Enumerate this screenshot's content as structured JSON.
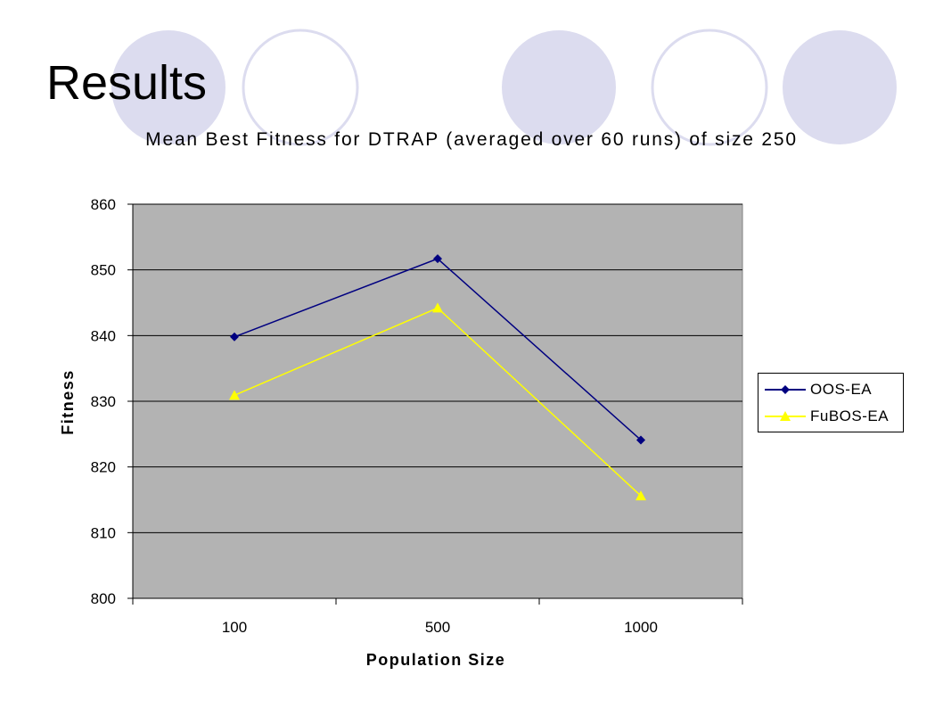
{
  "slide": {
    "title": "Results",
    "decor_color": "#dcdcef"
  },
  "chart_data": {
    "type": "line",
    "title": "Mean Best Fitness for DTRAP (averaged over 60 runs) of size 250",
    "xlabel": "Population Size",
    "ylabel": "Fitness",
    "categories": [
      "100",
      "500",
      "1000"
    ],
    "ylim": [
      800,
      860
    ],
    "yticks": [
      800,
      810,
      820,
      830,
      840,
      850,
      860
    ],
    "grid": true,
    "plot_background": "#b3b3b3",
    "legend_position": "right",
    "series": [
      {
        "name": "OOS-EA",
        "values": [
          839.8,
          851.7,
          824.1
        ],
        "color": "#000080",
        "marker": "diamond"
      },
      {
        "name": "FuBOS-EA",
        "values": [
          830.9,
          844.2,
          815.6
        ],
        "color": "#ffff00",
        "marker": "triangle"
      }
    ]
  }
}
